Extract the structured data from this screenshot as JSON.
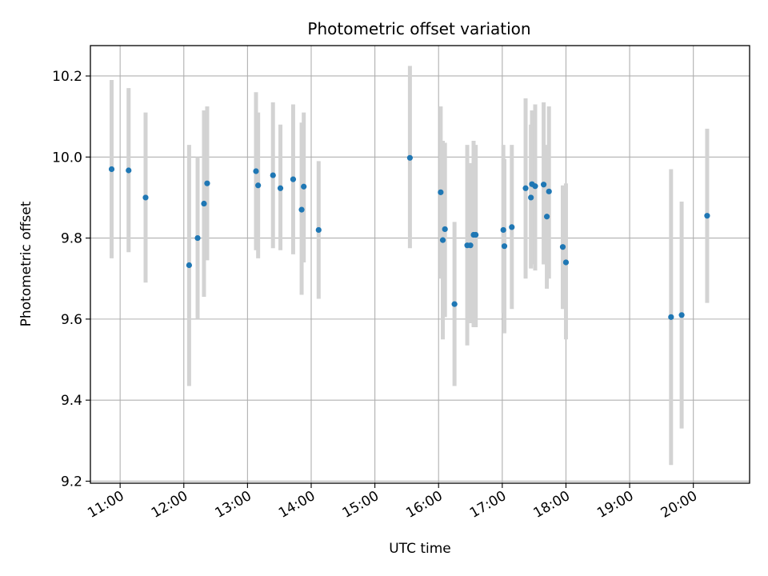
{
  "chart_data": {
    "type": "scatter",
    "title": "Photometric offset variation",
    "xlabel": "UTC time",
    "ylabel": "Photometric offset",
    "x_ticks": [
      "11:00",
      "12:00",
      "13:00",
      "14:00",
      "15:00",
      "16:00",
      "17:00",
      "18:00",
      "19:00",
      "20:00"
    ],
    "y_ticks": [
      "9.2",
      "9.4",
      "9.6",
      "9.8",
      "10.0",
      "10.2"
    ],
    "xlim": [
      "10:32",
      "20:53"
    ],
    "ylim": [
      9.195,
      10.275
    ],
    "grid": true,
    "colors": {
      "point": "#1f77b4",
      "errorbar": "#d3d3d3",
      "grid": "#b0b0b0"
    },
    "points": [
      {
        "x": "10:52",
        "y": 9.97,
        "ylow": 9.75,
        "yhigh": 10.19
      },
      {
        "x": "11:08",
        "y": 9.967,
        "ylow": 9.765,
        "yhigh": 10.17
      },
      {
        "x": "11:24",
        "y": 9.9,
        "ylow": 9.69,
        "yhigh": 10.11
      },
      {
        "x": "12:05",
        "y": 9.733,
        "ylow": 9.435,
        "yhigh": 10.03
      },
      {
        "x": "12:13",
        "y": 9.8,
        "ylow": 9.6,
        "yhigh": 10.0
      },
      {
        "x": "12:19",
        "y": 9.885,
        "ylow": 9.655,
        "yhigh": 10.115
      },
      {
        "x": "12:22",
        "y": 9.935,
        "ylow": 9.745,
        "yhigh": 10.125
      },
      {
        "x": "13:08",
        "y": 9.965,
        "ylow": 9.77,
        "yhigh": 10.16
      },
      {
        "x": "13:10",
        "y": 9.93,
        "ylow": 9.75,
        "yhigh": 10.11
      },
      {
        "x": "13:24",
        "y": 9.955,
        "ylow": 9.775,
        "yhigh": 10.135
      },
      {
        "x": "13:31",
        "y": 9.923,
        "ylow": 9.77,
        "yhigh": 10.08
      },
      {
        "x": "13:43",
        "y": 9.945,
        "ylow": 9.76,
        "yhigh": 10.13
      },
      {
        "x": "13:51",
        "y": 9.87,
        "ylow": 9.66,
        "yhigh": 10.085
      },
      {
        "x": "13:53",
        "y": 9.927,
        "ylow": 9.74,
        "yhigh": 10.11
      },
      {
        "x": "14:07",
        "y": 9.82,
        "ylow": 9.65,
        "yhigh": 9.99
      },
      {
        "x": "15:33",
        "y": 9.998,
        "ylow": 9.775,
        "yhigh": 10.225
      },
      {
        "x": "16:02",
        "y": 9.913,
        "ylow": 9.7,
        "yhigh": 10.125
      },
      {
        "x": "16:04",
        "y": 9.795,
        "ylow": 9.55,
        "yhigh": 10.04
      },
      {
        "x": "16:06",
        "y": 9.822,
        "ylow": 9.605,
        "yhigh": 10.035
      },
      {
        "x": "16:15",
        "y": 9.637,
        "ylow": 9.435,
        "yhigh": 9.84
      },
      {
        "x": "16:27",
        "y": 9.782,
        "ylow": 9.535,
        "yhigh": 10.03
      },
      {
        "x": "16:30",
        "y": 9.782,
        "ylow": 9.59,
        "yhigh": 9.985
      },
      {
        "x": "16:33",
        "y": 9.808,
        "ylow": 9.58,
        "yhigh": 10.04
      },
      {
        "x": "16:35",
        "y": 9.808,
        "ylow": 9.58,
        "yhigh": 10.03
      },
      {
        "x": "17:01",
        "y": 9.82,
        "ylow": 9.615,
        "yhigh": 10.03
      },
      {
        "x": "17:02",
        "y": 9.78,
        "ylow": 9.565,
        "yhigh": 9.995
      },
      {
        "x": "17:09",
        "y": 9.827,
        "ylow": 9.625,
        "yhigh": 10.03
      },
      {
        "x": "17:22",
        "y": 9.923,
        "ylow": 9.7,
        "yhigh": 10.145
      },
      {
        "x": "17:27",
        "y": 9.9,
        "ylow": 9.725,
        "yhigh": 10.08
      },
      {
        "x": "17:28",
        "y": 9.933,
        "ylow": 9.735,
        "yhigh": 10.115
      },
      {
        "x": "17:31",
        "y": 9.928,
        "ylow": 9.72,
        "yhigh": 10.13
      },
      {
        "x": "17:39",
        "y": 9.932,
        "ylow": 9.735,
        "yhigh": 10.135
      },
      {
        "x": "17:42",
        "y": 9.853,
        "ylow": 9.675,
        "yhigh": 10.03
      },
      {
        "x": "17:44",
        "y": 9.915,
        "ylow": 9.7,
        "yhigh": 10.125
      },
      {
        "x": "17:57",
        "y": 9.778,
        "ylow": 9.625,
        "yhigh": 9.93
      },
      {
        "x": "18:00",
        "y": 9.74,
        "ylow": 9.55,
        "yhigh": 9.935
      },
      {
        "x": "19:39",
        "y": 9.605,
        "ylow": 9.24,
        "yhigh": 9.97
      },
      {
        "x": "19:49",
        "y": 9.61,
        "ylow": 9.33,
        "yhigh": 9.89
      },
      {
        "x": "20:13",
        "y": 9.855,
        "ylow": 9.64,
        "yhigh": 10.07
      }
    ]
  }
}
